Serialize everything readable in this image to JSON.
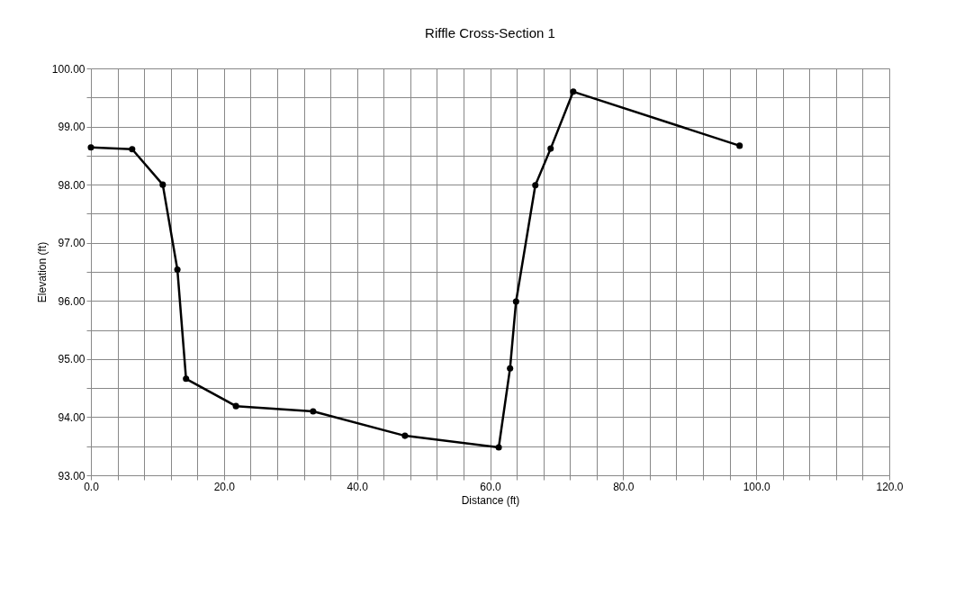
{
  "chart_data": {
    "type": "line",
    "title": "Riffle Cross-Section 1",
    "xlabel": "Distance (ft)",
    "ylabel": "Elevation (ft)",
    "x": [
      0.0,
      6.2,
      10.8,
      13.0,
      14.3,
      21.8,
      33.4,
      47.2,
      61.3,
      63.0,
      63.9,
      66.8,
      69.1,
      72.5,
      97.5
    ],
    "series": [
      {
        "color": "#000000",
        "values": [
          98.64,
          98.61,
          98.0,
          96.54,
          94.66,
          94.19,
          94.1,
          93.68,
          93.48,
          94.84,
          95.99,
          97.99,
          98.62,
          99.6,
          98.67
        ]
      }
    ],
    "xlim": [
      0,
      120
    ],
    "ylim": [
      93,
      100
    ],
    "xticks": [
      {
        "value": 0,
        "label": "0.0"
      },
      {
        "value": 4,
        "label": null
      },
      {
        "value": 8,
        "label": null
      },
      {
        "value": 12,
        "label": null
      },
      {
        "value": 16,
        "label": null
      },
      {
        "value": 20,
        "label": "20.0"
      },
      {
        "value": 24,
        "label": null
      },
      {
        "value": 28,
        "label": null
      },
      {
        "value": 32,
        "label": null
      },
      {
        "value": 36,
        "label": null
      },
      {
        "value": 40,
        "label": "40.0"
      },
      {
        "value": 44,
        "label": null
      },
      {
        "value": 48,
        "label": null
      },
      {
        "value": 52,
        "label": null
      },
      {
        "value": 56,
        "label": null
      },
      {
        "value": 60,
        "label": "60.0"
      },
      {
        "value": 64,
        "label": null
      },
      {
        "value": 68,
        "label": null
      },
      {
        "value": 72,
        "label": null
      },
      {
        "value": 76,
        "label": null
      },
      {
        "value": 80,
        "label": "80.0"
      },
      {
        "value": 84,
        "label": null
      },
      {
        "value": 88,
        "label": null
      },
      {
        "value": 92,
        "label": null
      },
      {
        "value": 96,
        "label": null
      },
      {
        "value": 100,
        "label": "100.0"
      },
      {
        "value": 104,
        "label": null
      },
      {
        "value": 108,
        "label": null
      },
      {
        "value": 112,
        "label": null
      },
      {
        "value": 116,
        "label": null
      },
      {
        "value": 120,
        "label": "120.0"
      }
    ],
    "yticks": [
      {
        "value": 93,
        "label": "93.00"
      },
      {
        "value": 93.5,
        "label": null
      },
      {
        "value": 94,
        "label": "94.00"
      },
      {
        "value": 94.5,
        "label": null
      },
      {
        "value": 95,
        "label": "95.00"
      },
      {
        "value": 95.5,
        "label": null
      },
      {
        "value": 96,
        "label": "96.00"
      },
      {
        "value": 96.5,
        "label": null
      },
      {
        "value": 97,
        "label": "97.00"
      },
      {
        "value": 97.5,
        "label": null
      },
      {
        "value": 98,
        "label": "98.00"
      },
      {
        "value": 98.5,
        "label": null
      },
      {
        "value": 99,
        "label": "99.00"
      },
      {
        "value": 99.5,
        "label": null
      },
      {
        "value": 100,
        "label": "100.00"
      }
    ],
    "grid": true,
    "marker": "circle",
    "line_style": "solid"
  }
}
